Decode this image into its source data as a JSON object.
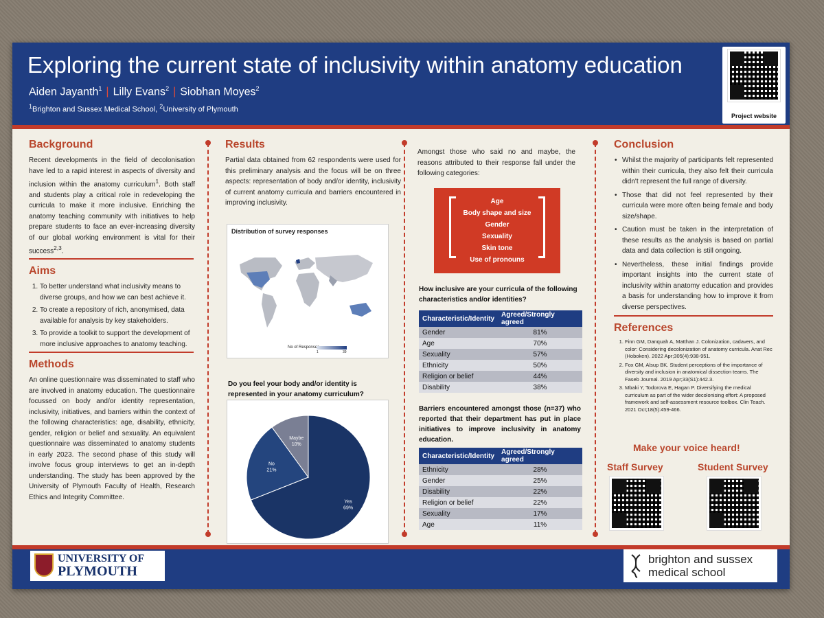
{
  "header": {
    "title": "Exploring the current state of inclusivity within anatomy education",
    "authors": [
      {
        "name": "Aiden Jayanth",
        "sup": "1"
      },
      {
        "name": "Lilly Evans",
        "sup": "2"
      },
      {
        "name": "Siobhan Moyes",
        "sup": "2"
      }
    ],
    "separator": "|",
    "affiliations": {
      "sup1": "1",
      "aff1": "Brighton and Sussex Medical School, ",
      "sup2": "2",
      "aff2": "University of Plymouth"
    },
    "qr_caption": "Project website"
  },
  "background": {
    "heading": "Background",
    "text_a": "Recent developments in the field of decolonisation have led to a rapid interest in aspects of diversity and inclusion within the anatomy curriculum",
    "sup_a": "1",
    "text_b": ". Both staff and students play a critical role in redeveloping the curricula to make it more inclusive. Enriching the anatomy teaching community with initiatives to help prepare students to face an ever-increasing diversity of our global working environment is vital for their success",
    "sup_b": "2,3",
    "text_c": "."
  },
  "aims": {
    "heading": "Aims",
    "items": [
      "To better understand what inclusivity means to diverse groups, and how we can best achieve it.",
      "To create a repository of rich, anonymised, data available for analysis by key stakeholders.",
      "To provide a toolkit to support the development of more inclusive approaches to anatomy teaching."
    ]
  },
  "methods": {
    "heading": "Methods",
    "text": "An online questionnaire was disseminated to staff who are involved in anatomy education. The questionnaire focussed on body and/or identity representation, inclusivity, initiatives, and barriers within the context of the following characteristics: age, disability, ethnicity, gender, religion or belief and sexuality. An equivalent questionnaire was disseminated to anatomy students in early 2023. The second phase of this study will involve focus group interviews to get an in-depth understanding. The study has been approved by the University of Plymouth Faculty of Health, Research Ethics and Integrity Committee."
  },
  "results": {
    "heading": "Results",
    "text": "Partial data obtained from 62 respondents were used for this preliminary analysis and the focus will be on three aspects: representation of body and/or identity, inclusivity of current anatomy curricula and barriers encountered in improving inclusivity.",
    "map_title": "Distribution of survey responses",
    "map_legend_label": "No of Responses",
    "map_legend_min": "1",
    "map_legend_max": "39",
    "pie_question": "Do you feel your body and/or identity is represented in your anatomy curriculum?"
  },
  "chart_data": {
    "type": "pie",
    "title": "Do you feel your body and/or identity is represented in your anatomy curriculum?",
    "categories": [
      "Yes",
      "No",
      "Maybe"
    ],
    "values": [
      69,
      21,
      10
    ],
    "value_labels": [
      "69%",
      "21%",
      "10%"
    ],
    "colors": [
      "#1a3466",
      "#24457e",
      "#7a7f94"
    ]
  },
  "col3": {
    "intro": "Amongst those who said no and maybe, the reasons attributed to their response fall under the following categories:",
    "categories": [
      "Age",
      "Body shape and size",
      "Gender",
      "Sexuality",
      "Skin tone",
      "Use of pronouns"
    ],
    "table1_question": "How inclusive are your curricula of the following characteristics and/or identities?",
    "table_headers": [
      "Characteristic/Identity",
      "Agreed/Strongly agreed"
    ],
    "table1": [
      [
        "Gender",
        "81%"
      ],
      [
        "Age",
        "70%"
      ],
      [
        "Sexuality",
        "57%"
      ],
      [
        "Ethnicity",
        "50%"
      ],
      [
        "Religion or belief",
        "44%"
      ],
      [
        "Disability",
        "38%"
      ]
    ],
    "table2_question": "Barriers encountered amongst those (n=37) who reported that their department has put in place initiatives to improve inclusivity in anatomy education.",
    "table2": [
      [
        "Ethnicity",
        "28%"
      ],
      [
        "Gender",
        "25%"
      ],
      [
        "Disability",
        "22%"
      ],
      [
        "Religion or belief",
        "22%"
      ],
      [
        "Sexuality",
        "17%"
      ],
      [
        "Age",
        "11%"
      ]
    ]
  },
  "conclusion": {
    "heading": "Conclusion",
    "items": [
      "Whilst the majority of participants felt represented within their curricula, they also felt their curricula didn't represent the full range of diversity.",
      "Those that did not feel represented by their curricula were more often being female and body size/shape.",
      "Caution must be taken in the interpretation of these results as the analysis is based on partial data and data collection is still ongoing.",
      "Nevertheless, these initial findings provide important insights into the current state of inclusivity within anatomy education and provides a basis for understanding how to improve it from diverse perspectives."
    ]
  },
  "references": {
    "heading": "References",
    "items": [
      "Finn GM, Danquah A, Matthan J. Colonization, cadavers, and color: Considering decolonization of anatomy curricula. Anat Rec (Hoboken). 2022 Apr;305(4):938-951.",
      "Fox GM, Alsup BK. Student perceptions of the importance of diversity and inclusion in anatomical dissection teams. The Faseb Journal. 2019 Apr;33(S1):442.3.",
      "Mbaki Y, Todorova E, Hagan P. Diversifying the medical curriculum as part of the wider decolonising effort: A proposed framework and self-assessment resource toolbox. Clin Teach. 2021 Oct;18(5):459-466."
    ]
  },
  "cta": {
    "heading": "Make your voice heard!",
    "staff_label": "Staff Survey",
    "student_label": "Student Survey"
  },
  "footer": {
    "plymouth_line1": "UNIVERSITY OF",
    "plymouth_line2": "PLYMOUTH",
    "bsms_line1": "brighton and sussex",
    "bsms_line2": "medical school"
  },
  "colors": {
    "navy": "#1f3d82",
    "red": "#c23b2a",
    "heading": "#b9462c",
    "paper": "#f2efe6"
  }
}
